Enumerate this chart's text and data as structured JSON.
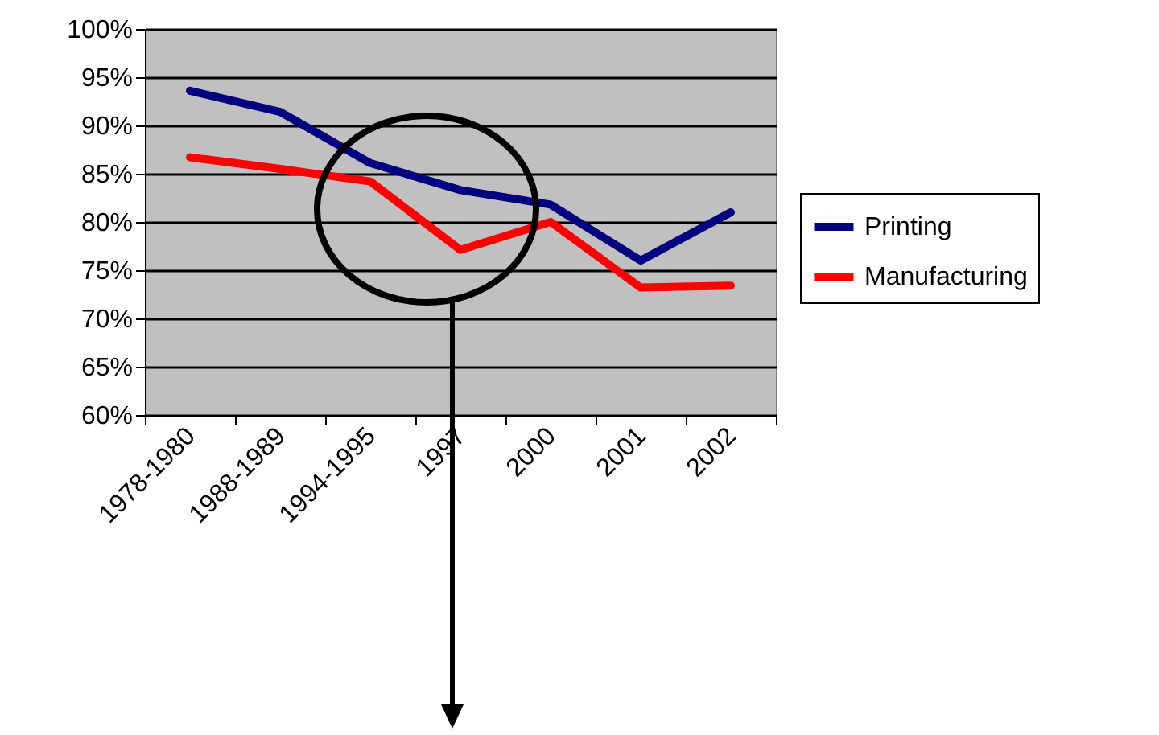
{
  "chart_data": {
    "type": "line",
    "categories": [
      "1978-1980",
      "1988-1989",
      "1994-1995",
      "1997",
      "2000",
      "2001",
      "2002"
    ],
    "series": [
      {
        "name": "Printing",
        "color": "#000080",
        "values": [
          93.6,
          91.4,
          86.1,
          83.3,
          81.8,
          76.0,
          81.0
        ]
      },
      {
        "name": "Manufacturing",
        "color": "#ff0000",
        "values": [
          86.7,
          85.5,
          84.2,
          77.1,
          80.0,
          73.2,
          73.4
        ]
      }
    ],
    "ylim": [
      60,
      100
    ],
    "yticks": [
      {
        "value": 60,
        "label": "60%"
      },
      {
        "value": 65,
        "label": "65%"
      },
      {
        "value": 70,
        "label": "70%"
      },
      {
        "value": 75,
        "label": "75%"
      },
      {
        "value": 80,
        "label": "80%"
      },
      {
        "value": 85,
        "label": "85%"
      },
      {
        "value": 90,
        "label": "90%"
      },
      {
        "value": 95,
        "label": "95%"
      },
      {
        "value": 100,
        "label": "100%"
      }
    ],
    "grid": "y",
    "legend": "right",
    "marker": "none",
    "line_style": "solid"
  }
}
